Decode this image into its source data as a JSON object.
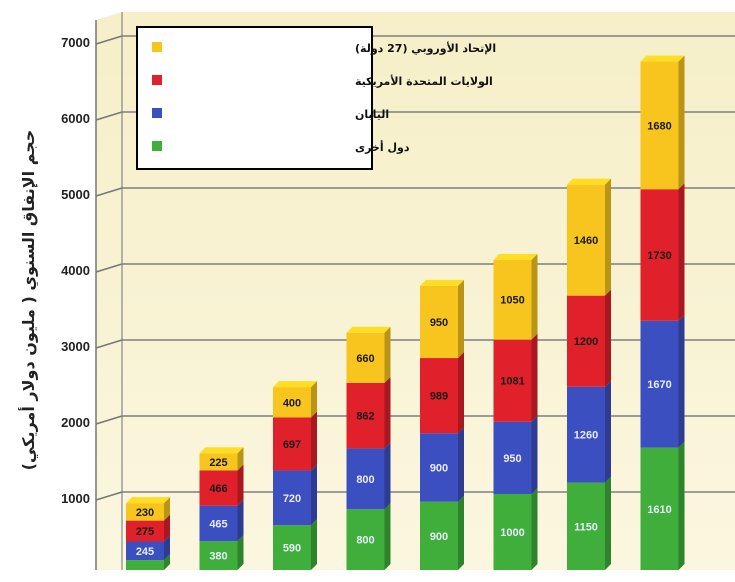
{
  "chart_data": {
    "type": "bar",
    "stacked": true,
    "ylabel": "حجم الإنفاق السنوي ( مليون دولار أمريكي)",
    "xlabel": "",
    "title": "",
    "ylim": [
      0,
      7000
    ],
    "yticks": [
      "1000",
      "2000",
      "3000",
      "4000",
      "5000",
      "6000",
      "7000"
    ],
    "grid": true,
    "legend_position": "top-left",
    "bars": 8,
    "series": [
      {
        "name": "دول أخرى",
        "color": "#3fae3a",
        "values": [
          130,
          380,
          590,
          800,
          900,
          1000,
          1150,
          1610
        ],
        "labels": [
          "",
          "380",
          "590",
          "800",
          "900",
          "1000",
          "1150",
          "1610"
        ]
      },
      {
        "name": "اليابان",
        "color": "#3c4fc0",
        "values": [
          245,
          465,
          720,
          800,
          900,
          950,
          1260,
          1670
        ],
        "labels": [
          "245",
          "465",
          "720",
          "800",
          "900",
          "950",
          "1260",
          "1670"
        ]
      },
      {
        "name": "الولايات المتحدة الأمريكية",
        "color": "#e0202a",
        "values": [
          275,
          466,
          697,
          862,
          989,
          1081,
          1200,
          1730
        ],
        "labels": [
          "275",
          "466",
          "697",
          "862",
          "989",
          "1081",
          "1200",
          "1730"
        ]
      },
      {
        "name": "الإتحاد الأوروبي (27 دولة)",
        "color": "#f7c51e",
        "values": [
          230,
          225,
          400,
          660,
          950,
          1050,
          1460,
          1680
        ],
        "labels": [
          "230",
          "225",
          "400",
          "660",
          "950",
          "1050",
          "1460",
          "1680"
        ]
      }
    ]
  }
}
